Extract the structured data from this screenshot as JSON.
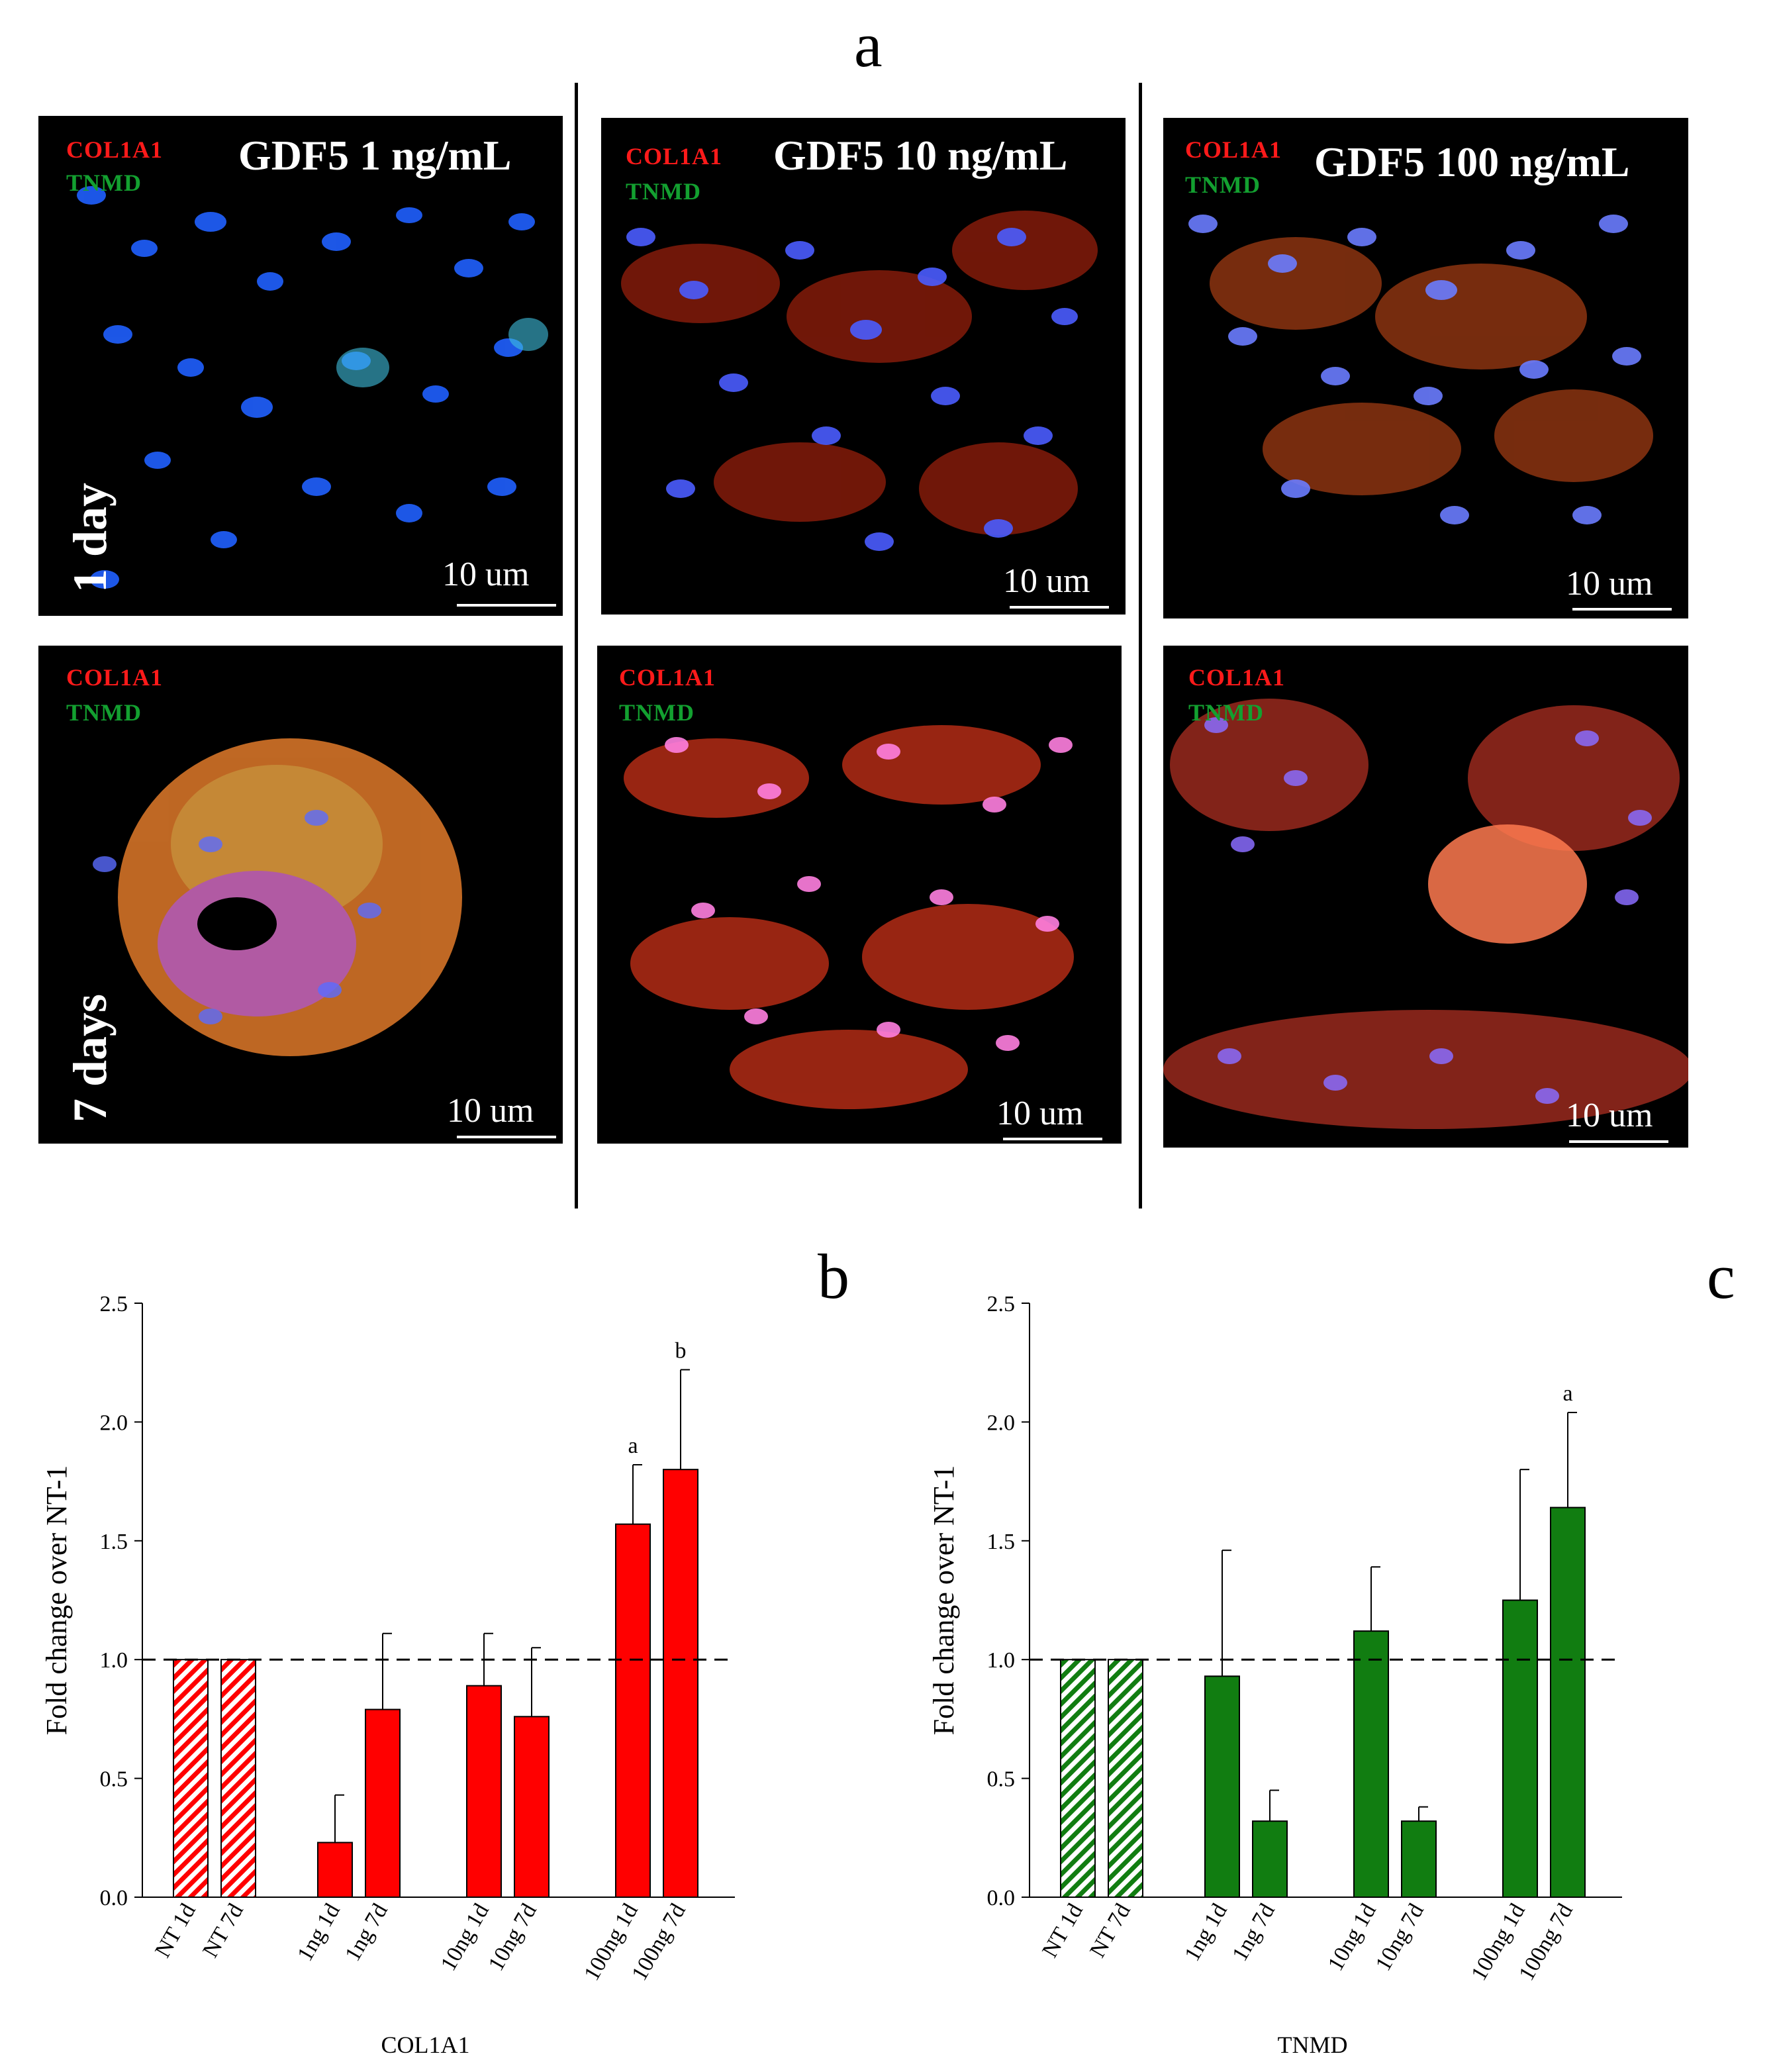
{
  "figure": {
    "panel_a_letter": "a",
    "panel_b_letter": "b",
    "panel_c_letter": "c",
    "stain_red": "COL1A1",
    "stain_green": "TNMD",
    "scale_label": "10 um",
    "conditions": [
      "GDF5 1 ng/mL",
      "GDF5 10 ng/mL",
      "GDF5 100 ng/mL"
    ],
    "timepoints": [
      "1 day",
      "7 days"
    ]
  },
  "chart_data": [
    {
      "type": "bar",
      "panel": "b",
      "xlabel": "COL1A1",
      "ylabel": "Fold change over NT-1",
      "ylim": [
        0,
        2.5
      ],
      "yticks": [
        "0.0",
        "0.5",
        "1.0",
        "1.5",
        "2.0",
        "2.5"
      ],
      "reference_line": 1.0,
      "color": "#ff0000",
      "categories": [
        "NT 1d",
        "NT 7d",
        "1ng 1d",
        "1ng 7d",
        "10ng 1d",
        "10ng 7d",
        "100ng 1d",
        "100ng 7d"
      ],
      "values": [
        1.0,
        1.0,
        0.23,
        0.79,
        0.89,
        0.76,
        1.57,
        1.8
      ],
      "error_upper": [
        null,
        null,
        0.43,
        1.11,
        1.11,
        1.05,
        1.82,
        2.22
      ],
      "hatched": [
        true,
        true,
        false,
        false,
        false,
        false,
        false,
        false
      ],
      "annotations": [
        "",
        "",
        "",
        "",
        "",
        "",
        "a",
        "b"
      ]
    },
    {
      "type": "bar",
      "panel": "c",
      "xlabel": "TNMD",
      "ylabel": "Fold change over NT-1",
      "ylim": [
        0,
        2.5
      ],
      "yticks": [
        "0.0",
        "0.5",
        "1.0",
        "1.5",
        "2.0",
        "2.5"
      ],
      "reference_line": 1.0,
      "color": "#117d11",
      "categories": [
        "NT 1d",
        "NT 7d",
        "1ng 1d",
        "1ng 7d",
        "10ng 1d",
        "10ng 7d",
        "100ng 1d",
        "100ng 7d"
      ],
      "values": [
        1.0,
        1.0,
        0.93,
        0.32,
        1.12,
        0.32,
        1.25,
        1.64
      ],
      "error_upper": [
        null,
        null,
        1.46,
        0.45,
        1.39,
        0.38,
        1.8,
        2.04
      ],
      "hatched": [
        true,
        true,
        false,
        false,
        false,
        false,
        false,
        false
      ],
      "annotations": [
        "",
        "",
        "",
        "",
        "",
        "",
        "",
        "a"
      ]
    }
  ]
}
